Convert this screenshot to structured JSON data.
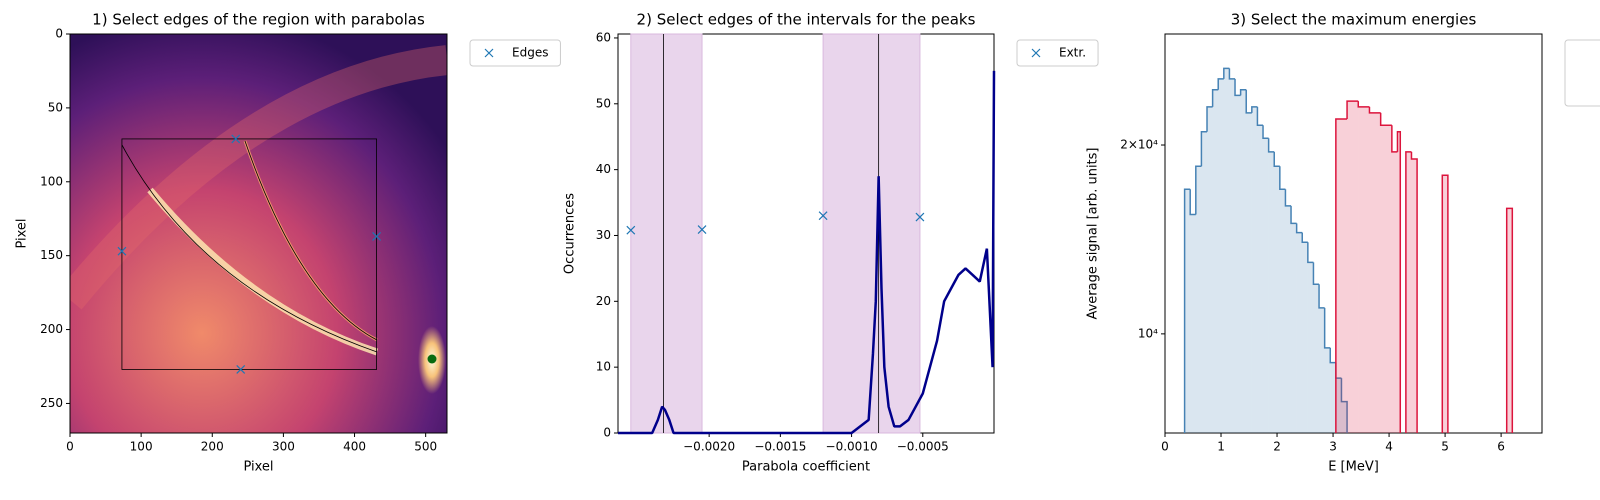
{
  "chart_data": [
    {
      "type": "image",
      "title": "1) Select edges of the region with parabolas",
      "xlabel": "Pixel",
      "ylabel": "Pixel",
      "xlim": [
        0,
        530
      ],
      "ylim": [
        270,
        0
      ],
      "xticks": [
        0,
        100,
        200,
        300,
        400,
        500
      ],
      "yticks": [
        0,
        50,
        100,
        150,
        200,
        250
      ],
      "series": [
        {
          "name": "Edges",
          "color": "#1f77b4",
          "x": [
            233,
            73,
            431,
            240
          ],
          "values": [
            71,
            147,
            137,
            227
          ]
        }
      ]
    },
    {
      "type": "line",
      "title": "2) Select edges of the intervals for the peaks",
      "xlabel": "Parabola coefficient",
      "ylabel": "Occurrences",
      "xlim": [
        -0.00264,
        0
      ],
      "ylim": [
        0,
        60.6
      ],
      "xticks": [
        {
          "value": -0.002,
          "label": "−0.0020"
        },
        {
          "value": -0.0015,
          "label": "−0.0015"
        },
        {
          "value": -0.001,
          "label": "−0.0010"
        },
        {
          "value": -0.0005,
          "label": "−0.0005"
        }
      ],
      "yticks": [
        0,
        10,
        20,
        30,
        40,
        50,
        60
      ],
      "vlines": [
        -0.00232,
        -0.00081
      ],
      "span_color": "#e9d5ec",
      "series": [
        {
          "color": "#00008b",
          "x": [
            -0.00264,
            -0.0024,
            -0.00236,
            -0.00233,
            -0.00231,
            -0.00228,
            -0.00225,
            -0.0022,
            -0.001,
            -0.00088,
            -0.00085,
            -0.00083,
            -0.00081,
            -0.00079,
            -0.00077,
            -0.00074,
            -0.0007,
            -0.00066,
            -0.0006,
            -0.00055,
            -0.0005,
            -0.00045,
            -0.0004,
            -0.00035,
            -0.0003,
            -0.00025,
            -0.0002,
            -0.00015,
            -0.0001,
            -5e-05,
            -1e-05,
            0
          ],
          "values": [
            0,
            0,
            2,
            4,
            3.5,
            2,
            0,
            0,
            0,
            2,
            12,
            20,
            39,
            22,
            10,
            4,
            1,
            1,
            2,
            4,
            6,
            10,
            14,
            20,
            22,
            24,
            25,
            24,
            23,
            28,
            10,
            55
          ]
        },
        {
          "name": "Extr.",
          "color": "#1f77b4",
          "x": [
            -0.00255,
            -0.00205,
            -0.0012,
            -0.00052
          ],
          "values": [
            30.8,
            30.9,
            33,
            32.8
          ]
        }
      ]
    },
    {
      "type": "histogram",
      "title": "3) Select the maximum energies",
      "xlabel": "E [MeV]",
      "ylabel": "Average signal [arb. units]",
      "xlim": [
        0,
        6.73
      ],
      "ylim": [
        6950,
        30060
      ],
      "log_y": true,
      "xticks": [
        0,
        1,
        2,
        3,
        4,
        5,
        6
      ],
      "yticks": [
        {
          "value": 10000,
          "label": "10⁴"
        },
        {
          "value": 20000,
          "label": "2×10⁴"
        }
      ],
      "series": [
        {
          "color": "#4682b4",
          "bins": [
            0.35,
            0.45,
            0.55,
            0.65,
            0.75,
            0.85,
            0.95,
            1.05,
            1.15,
            1.25,
            1.35,
            1.45,
            1.55,
            1.65,
            1.75,
            1.85,
            1.95,
            2.05,
            2.15,
            2.25,
            2.35,
            2.45,
            2.55,
            2.65,
            2.75,
            2.85,
            2.95,
            3.05,
            3.15,
            3.25
          ],
          "values": [
            17000,
            15500,
            18500,
            21000,
            23000,
            24500,
            25500,
            26500,
            25500,
            24000,
            24500,
            22500,
            23000,
            21500,
            20500,
            19500,
            18500,
            17000,
            16000,
            15000,
            14500,
            14000,
            13000,
            12000,
            11000,
            9500,
            9000,
            8500,
            7800
          ]
        },
        {
          "color": "#dc143c",
          "bins": [
            3.05,
            3.25,
            3.45,
            3.65,
            3.85,
            4.05,
            4.15,
            4.2,
            4.3,
            4.4,
            4.5,
            4.95,
            5.05,
            6.1,
            6.2
          ],
          "values": [
            22000,
            23500,
            23000,
            22500,
            21500,
            19500,
            21000,
            null,
            19500,
            19000,
            null,
            17900,
            null,
            15850
          ]
        }
      ]
    }
  ]
}
